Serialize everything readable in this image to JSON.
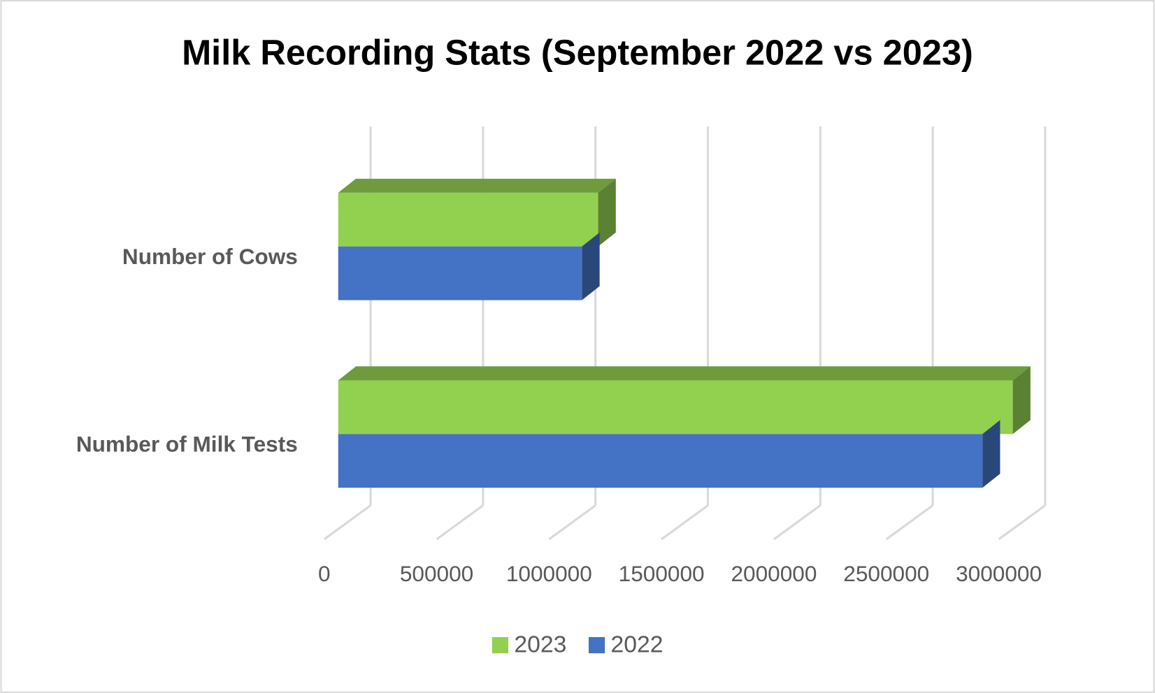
{
  "chart_data": {
    "type": "bar3d",
    "title": "Milk Recording Stats (September 2022 vs 2023)",
    "orientation": "horizontal",
    "categories": [
      "Number of Cows",
      "Number of Milk Tests"
    ],
    "series": [
      {
        "name": "2023",
        "color": "#92d050",
        "values": [
          1156000,
          3000000
        ]
      },
      {
        "name": "2022",
        "color": "#4472c4",
        "values": [
          1084000,
          2865000
        ]
      }
    ],
    "xlim": [
      0,
      3000000
    ],
    "xticks": [
      0,
      500000,
      1000000,
      1500000,
      2000000,
      2500000,
      3000000
    ],
    "grid": true,
    "legend": "bottom"
  }
}
